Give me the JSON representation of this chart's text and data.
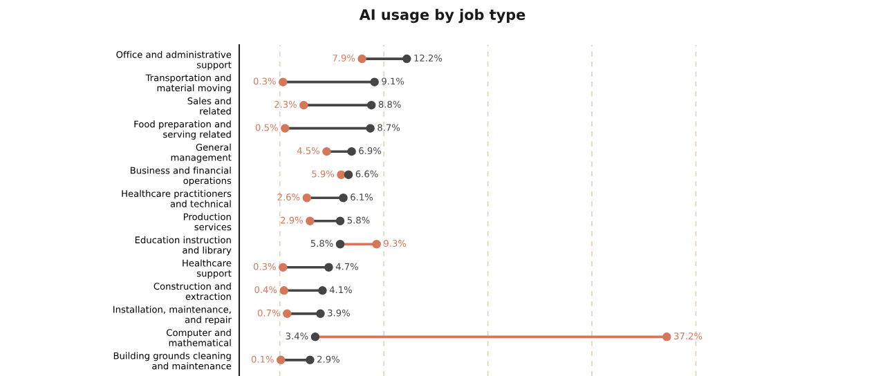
{
  "chart_data": {
    "type": "other",
    "title": "AI usage by job type",
    "categories": [
      "Office and administrative\nsupport",
      "Transportation and\nmaterial moving",
      "Sales and\nrelated",
      "Food preparation and\nserving related",
      "General\nmanagement",
      "Business and financial\noperations",
      "Healthcare practitioners\nand technical",
      "Production\nservices",
      "Education instruction\nand library",
      "Healthcare\nsupport",
      "Construction and\nextraction",
      "Installation, maintenance,\nand repair",
      "Computer and\nmathematical",
      "Building grounds cleaning\nand maintenance"
    ],
    "series": [
      {
        "color": "#d4785a",
        "values": [
          7.9,
          0.3,
          2.3,
          0.5,
          4.5,
          5.9,
          2.6,
          2.9,
          9.3,
          0.3,
          0.4,
          0.7,
          37.2,
          0.1
        ],
        "value_labels": [
          "7.9%",
          "0.3%",
          "2.3%",
          "0.5%",
          "4.5%",
          "5.9%",
          "2.6%",
          "2.9%",
          "9.3%",
          "0.3%",
          "0.4%",
          "0.7%",
          "37.2%",
          "0.1%"
        ]
      },
      {
        "color": "#454545",
        "values": [
          12.2,
          9.1,
          8.8,
          8.7,
          6.9,
          6.6,
          6.1,
          5.8,
          5.8,
          4.7,
          4.1,
          3.9,
          3.4,
          2.9
        ],
        "value_labels": [
          "12.2%",
          "9.1%",
          "8.8%",
          "8.7%",
          "6.9%",
          "6.6%",
          "6.1%",
          "5.8%",
          "5.8%",
          "4.7%",
          "4.1%",
          "3.9%",
          "3.4%",
          "2.9%"
        ]
      }
    ]
  }
}
